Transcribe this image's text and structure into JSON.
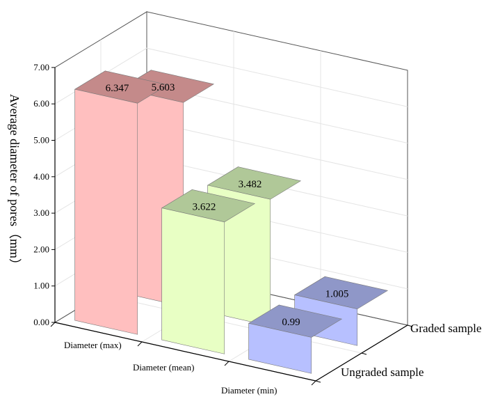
{
  "chart_data": {
    "type": "bar",
    "subtype": "3d-grouped",
    "categories": [
      "Diameter (max)",
      "Diameter (mean)",
      "Diameter (min)"
    ],
    "series": [
      {
        "name": "Ungraded sample",
        "values": [
          6.347,
          3.622,
          0.99
        ],
        "data_labels": [
          "6.347",
          "3.622",
          "0.99"
        ]
      },
      {
        "name": "Graded sample",
        "values": [
          5.603,
          3.482,
          1.005
        ],
        "data_labels": [
          "5.603",
          "3.482",
          "1.005"
        ]
      }
    ],
    "category_colors": [
      {
        "front": "#ffbfbf",
        "side": "#b07c7c",
        "top": "#c48a8a"
      },
      {
        "front": "#e8ffc4",
        "side": "#a0b888",
        "top": "#b0c898"
      },
      {
        "front": "#b7c0ff",
        "side": "#7f89c0",
        "top": "#8f97c8"
      }
    ],
    "ylabel": "Average diameter of pores（mm）",
    "ylim": [
      0,
      7
    ],
    "yticks": [
      "0.00",
      "1.00",
      "2.00",
      "3.00",
      "4.00",
      "5.00",
      "6.00",
      "7.00"
    ],
    "grid": true
  }
}
